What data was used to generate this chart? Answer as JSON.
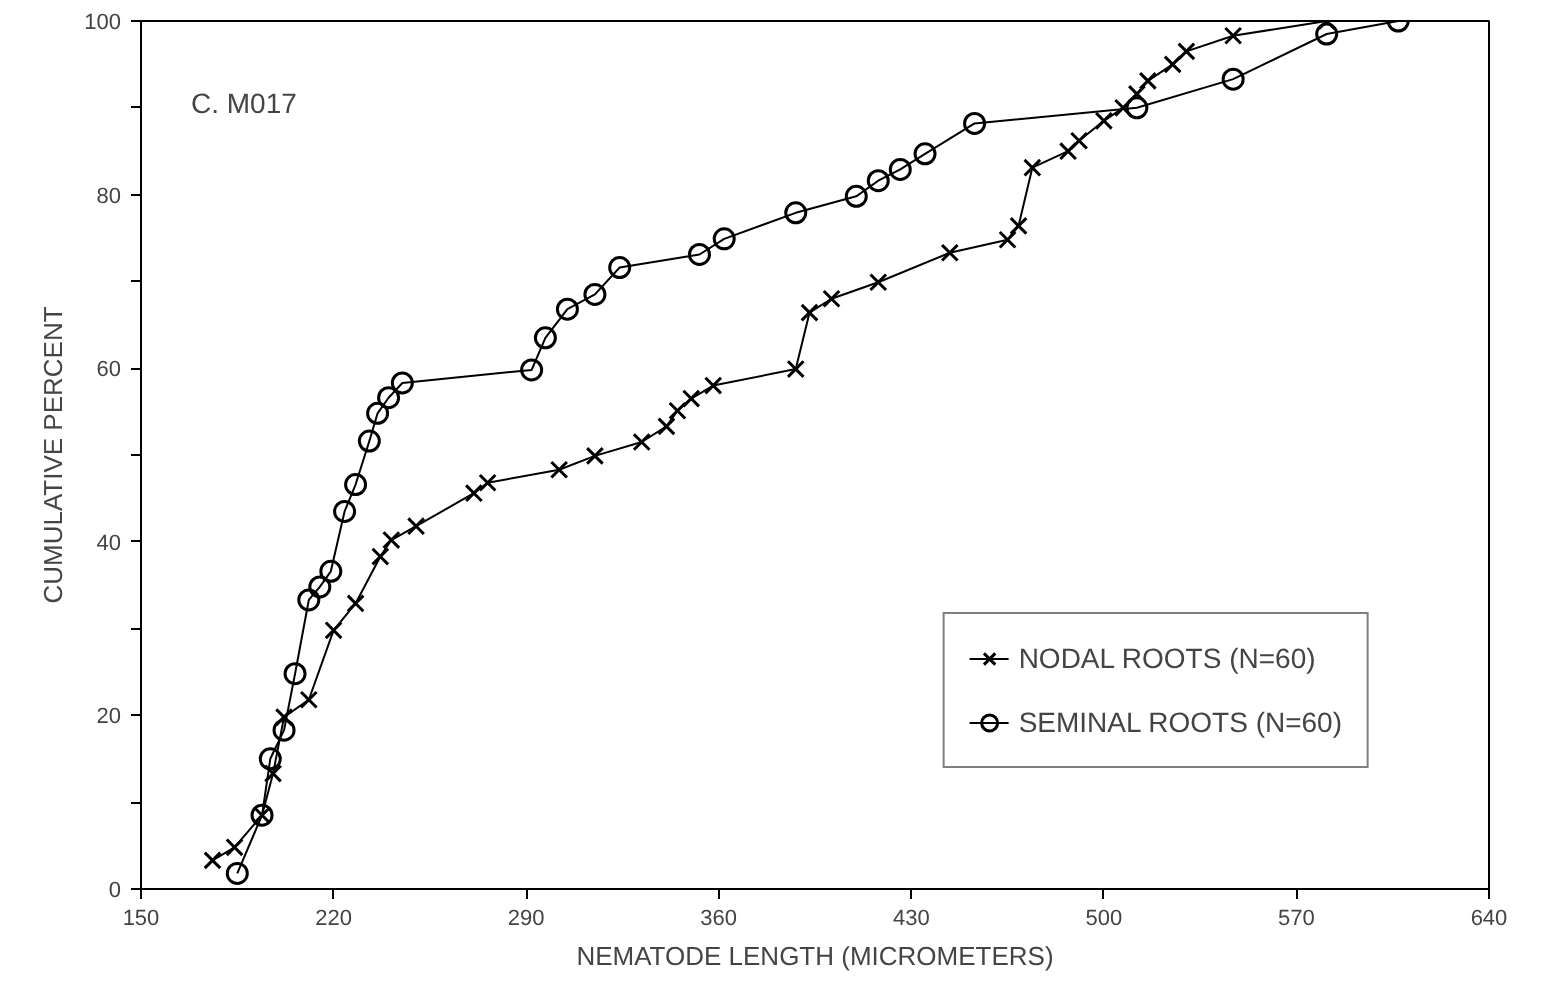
{
  "chart_data": {
    "type": "line",
    "xlabel": "NEMATODE LENGTH (MICROMETERS)",
    "ylabel": "CUMULATIVE PERCENT",
    "annotations": [
      "C.  M017"
    ],
    "xlim": [
      150,
      640
    ],
    "ylim": [
      0,
      100
    ],
    "xticks": [
      150,
      220,
      290,
      360,
      430,
      500,
      570,
      640
    ],
    "yticks": [
      0,
      {
        "value": 10,
        "label": null
      },
      20,
      {
        "value": 30,
        "label": null
      },
      40,
      {
        "value": 50,
        "label": null
      },
      60,
      {
        "value": 70,
        "label": null
      },
      80,
      {
        "value": 90,
        "label": null
      },
      100
    ],
    "grid": false,
    "legend": "bottom right",
    "line_style": "solid",
    "series": [
      {
        "name": "NODAL ROOTS (N=60)",
        "color": "#000000",
        "marker": "cross",
        "x": [
          176,
          184,
          194,
          198,
          202,
          211,
          220,
          228,
          237,
          241,
          250,
          271,
          276,
          302,
          315,
          332,
          341,
          345,
          350,
          358,
          388,
          393,
          401,
          418,
          444,
          465,
          469,
          474,
          487,
          491,
          500,
          507,
          512,
          516,
          525,
          530,
          547,
          581
        ],
        "values": [
          3.3,
          4.8,
          8.5,
          13.3,
          19.8,
          21.8,
          29.8,
          32.9,
          38.3,
          40.2,
          41.8,
          45.6,
          46.8,
          48.3,
          49.9,
          51.5,
          53.3,
          55.1,
          56.5,
          58.0,
          59.9,
          66.4,
          68.0,
          69.9,
          73.3,
          74.8,
          76.4,
          83.1,
          85.0,
          86.2,
          88.5,
          90.0,
          91.6,
          93.1,
          95.0,
          96.5,
          98.3,
          100.0
        ]
      },
      {
        "name": "SEMINAL ROOTS (N=60)",
        "color": "#000000",
        "marker": "circle",
        "x": [
          185,
          194,
          197,
          202,
          206,
          211,
          215,
          219,
          224,
          228,
          233,
          236,
          240,
          245,
          292,
          297,
          305,
          315,
          324,
          353,
          362,
          388,
          410,
          418,
          426,
          435,
          453,
          512,
          547,
          581,
          607
        ],
        "values": [
          1.8,
          8.5,
          15.0,
          18.3,
          24.8,
          33.3,
          34.8,
          36.6,
          43.5,
          46.6,
          51.6,
          54.8,
          56.6,
          58.3,
          59.8,
          63.5,
          66.8,
          68.5,
          71.6,
          73.1,
          74.9,
          77.9,
          79.8,
          81.6,
          82.9,
          84.7,
          88.2,
          90.0,
          93.3,
          98.5,
          100.0
        ]
      }
    ]
  }
}
